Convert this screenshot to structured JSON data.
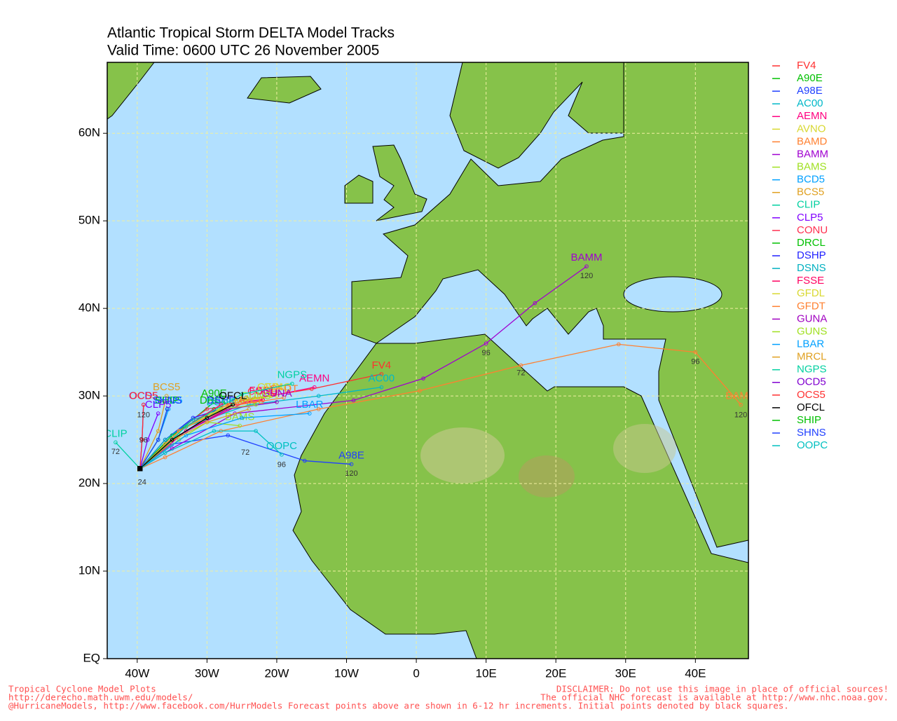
{
  "chart_data": {
    "type": "map",
    "title": "Atlantic Tropical Storm DELTA Model Tracks",
    "subtitle": "Valid Time: 0600 UTC 26 November 2005",
    "xlim": [
      -44.3,
      47.6
    ],
    "ylim": [
      0,
      68.1
    ],
    "grid": true,
    "xticks": [
      {
        "value": -40,
        "label": "40W"
      },
      {
        "value": -30,
        "label": "30W"
      },
      {
        "value": -20,
        "label": "20W"
      },
      {
        "value": -10,
        "label": "10W"
      },
      0,
      {
        "value": 10,
        "label": "10E"
      },
      {
        "value": 20,
        "label": "20E"
      },
      {
        "value": 30,
        "label": "30E"
      },
      {
        "value": 40,
        "label": "40E"
      }
    ],
    "yticks": [
      {
        "value": 0,
        "label": "EQ"
      },
      {
        "value": 10,
        "label": "10N"
      },
      {
        "value": 20,
        "label": "20N"
      },
      {
        "value": 30,
        "label": "30N"
      },
      {
        "value": 40,
        "label": "40N"
      },
      {
        "value": 50,
        "label": "50N"
      },
      {
        "value": 60,
        "label": "60N"
      }
    ],
    "series": [
      {
        "name": "FV4",
        "color": "#ff3030",
        "x": [
          -39.6,
          -33,
          -25,
          -15,
          -5
        ],
        "values": [
          21.7,
          26,
          29.5,
          30.8,
          32.5
        ]
      },
      {
        "name": "A90E",
        "color": "#00c000",
        "x": [
          -39.6,
          -34,
          -29
        ],
        "values": [
          21.7,
          26,
          29.3
        ]
      },
      {
        "name": "A98E",
        "color": "#2040ff",
        "x": [
          -39.6,
          -35,
          -27,
          -16,
          -9.3
        ],
        "values": [
          21.7,
          24.5,
          25.5,
          22.6,
          22.2
        ]
      },
      {
        "name": "AC00",
        "color": "#00b8c8",
        "x": [
          -39.6,
          -33,
          -24,
          -14,
          -5
        ],
        "values": [
          21.7,
          26.5,
          29,
          30,
          31
        ]
      },
      {
        "name": "AEMN",
        "color": "#ff0080",
        "x": [
          -39.6,
          -33,
          -24,
          -14.6
        ],
        "values": [
          21.7,
          26,
          29.5,
          31
        ]
      },
      {
        "name": "AVNO",
        "color": "#d8d830",
        "x": [
          -39.6,
          -33,
          -26,
          -20
        ],
        "values": [
          21.7,
          26.5,
          29.5,
          30
        ]
      },
      {
        "name": "BAMD",
        "color": "#ff8030",
        "x": [
          -39.6,
          -36,
          -28,
          -14,
          0.5,
          15,
          29,
          40,
          46.5
        ],
        "values": [
          21.7,
          23,
          26,
          28.5,
          30.6,
          33.5,
          35.9,
          35,
          29
        ]
      },
      {
        "name": "BAMM",
        "color": "#a000d0",
        "x": [
          -39.6,
          -35,
          -26,
          -9,
          1,
          10,
          17,
          24.4
        ],
        "values": [
          21.7,
          24,
          28,
          29.5,
          32,
          36,
          40.6,
          44.8
        ]
      },
      {
        "name": "BAMS",
        "color": "#a0e020",
        "x": [
          -39.6,
          -34,
          -30,
          -25.3
        ],
        "values": [
          21.7,
          25,
          27,
          26.6
        ]
      },
      {
        "name": "BCD5",
        "color": "#00a0ff",
        "x": [
          -39.6,
          -37,
          -35.5
        ],
        "values": [
          21.7,
          25,
          28.5
        ]
      },
      {
        "name": "BCS5",
        "color": "#e0a020",
        "x": [
          -39.6,
          -37,
          -35.8
        ],
        "values": [
          21.7,
          26,
          30
        ]
      },
      {
        "name": "CLIP",
        "color": "#00d0a0",
        "x": [
          -39.6,
          -43.1
        ],
        "values": [
          21.7,
          24.7
        ]
      },
      {
        "name": "CLP5",
        "color": "#8000ff",
        "x": [
          -39.6,
          -38.5,
          -37
        ],
        "values": [
          21.7,
          25,
          28
        ]
      },
      {
        "name": "CONU",
        "color": "#ff3050",
        "x": [
          -39.6,
          -36,
          -30,
          -22
        ],
        "values": [
          21.7,
          25,
          28.5,
          29.5
        ]
      },
      {
        "name": "DRCL",
        "color": "#00c000",
        "x": [
          -39.6,
          -35,
          -29
        ],
        "values": [
          21.7,
          25.5,
          28.5
        ]
      },
      {
        "name": "DSHP",
        "color": "#2020ff",
        "x": [
          -39.6,
          -36,
          -32,
          -28
        ],
        "values": [
          21.7,
          25,
          27.5,
          28.5
        ]
      },
      {
        "name": "DSNS",
        "color": "#00b0c0",
        "x": [
          -39.6,
          -36,
          -32,
          -28
        ],
        "values": [
          21.7,
          25,
          27.3,
          28.3
        ]
      },
      {
        "name": "FSSE",
        "color": "#ff0060",
        "x": [
          -39.6,
          -34,
          -28,
          -22
        ],
        "values": [
          21.7,
          26,
          29,
          29.6
        ]
      },
      {
        "name": "GFDL",
        "color": "#d8d830",
        "x": [
          -39.6,
          -34,
          -27,
          -20.8
        ],
        "values": [
          21.7,
          26,
          29,
          30
        ]
      },
      {
        "name": "GFDT",
        "color": "#ff8030",
        "x": [
          -39.6,
          -34,
          -27,
          -19
        ],
        "values": [
          21.7,
          26,
          28.8,
          29.8
        ]
      },
      {
        "name": "GUNA",
        "color": "#a000c0",
        "x": [
          -39.6,
          -34,
          -27,
          -20
        ],
        "values": [
          21.7,
          25.5,
          28.5,
          29.3
        ]
      },
      {
        "name": "GUNS",
        "color": "#a0e020",
        "x": [
          -39.6,
          -34,
          -28,
          -23
        ],
        "values": [
          21.7,
          25.5,
          28.5,
          29
        ]
      },
      {
        "name": "LBAR",
        "color": "#00a0ff",
        "x": [
          -39.6,
          -33,
          -25,
          -15.3
        ],
        "values": [
          21.7,
          25.5,
          27.5,
          28
        ]
      },
      {
        "name": "MRCL",
        "color": "#e0a020",
        "x": [
          -39.6,
          -36,
          -30,
          -24
        ],
        "values": [
          21.7,
          24.5,
          27,
          28.5
        ]
      },
      {
        "name": "NGPS",
        "color": "#00d0a0",
        "x": [
          -39.6,
          -33,
          -25,
          -17.8
        ],
        "values": [
          21.7,
          26.5,
          30.2,
          31.4
        ]
      },
      {
        "name": "OCD5",
        "color": "#8000d0",
        "x": [
          -39.6,
          -39.3,
          -39.1
        ],
        "values": [
          21.7,
          25,
          29
        ]
      },
      {
        "name": "OCS5",
        "color": "#ff3030",
        "x": [
          -39.6,
          -39.3,
          -39.1
        ],
        "values": [
          21.7,
          25,
          29
        ]
      },
      {
        "name": "OFCL",
        "color": "#000000",
        "x": [
          -39.6,
          -35,
          -30,
          -26.3
        ],
        "values": [
          21.7,
          25,
          27.5,
          29
        ]
      },
      {
        "name": "SHIP",
        "color": "#00c000",
        "x": [
          -39.6,
          -37,
          -35.7
        ],
        "values": [
          21.7,
          25,
          28.5
        ]
      },
      {
        "name": "SHNS",
        "color": "#2040ff",
        "x": [
          -39.6,
          -37,
          -35.7
        ],
        "values": [
          21.7,
          25,
          28.5
        ]
      },
      {
        "name": "OOPC",
        "color": "#00c0c0",
        "x": [
          -39.6,
          -36,
          -29,
          -23,
          -19.3
        ],
        "values": [
          21.7,
          23.5,
          26,
          26,
          23.3
        ]
      }
    ],
    "annotations": [
      {
        "text": "120",
        "x": 46.5,
        "y": 27.8
      },
      {
        "text": "120",
        "x": 24.4,
        "y": 43.7
      },
      {
        "text": "120",
        "x": -9.3,
        "y": 21.1
      },
      {
        "text": "120",
        "x": -39.1,
        "y": 27.8
      },
      {
        "text": "72",
        "x": -43.1,
        "y": 23.6
      },
      {
        "text": "96",
        "x": -39.1,
        "y": 24.9
      },
      {
        "text": "96",
        "x": 10,
        "y": 34.9
      },
      {
        "text": "72",
        "x": 15,
        "y": 32.6
      },
      {
        "text": "96",
        "x": 40,
        "y": 33.9
      },
      {
        "text": "96",
        "x": -19.3,
        "y": 22.1
      },
      {
        "text": "72",
        "x": -24.5,
        "y": 23.5
      },
      {
        "text": "24",
        "x": -39.3,
        "y": 20.1
      }
    ]
  },
  "footer": {
    "left": [
      "Tropical Cyclone Model Plots",
      "http://derecho.math.uwm.edu/models/",
      "@HurricaneModels, http://www.facebook.com/HurrModels  Forecast points above are shown in 6-12 hr increments. Initial points denoted by black squares."
    ],
    "right": [
      "DISCLAIMER: Do not use this image in place of official sources!",
      "The official NHC forecast is available at http://www.nhc.noaa.gov."
    ]
  }
}
